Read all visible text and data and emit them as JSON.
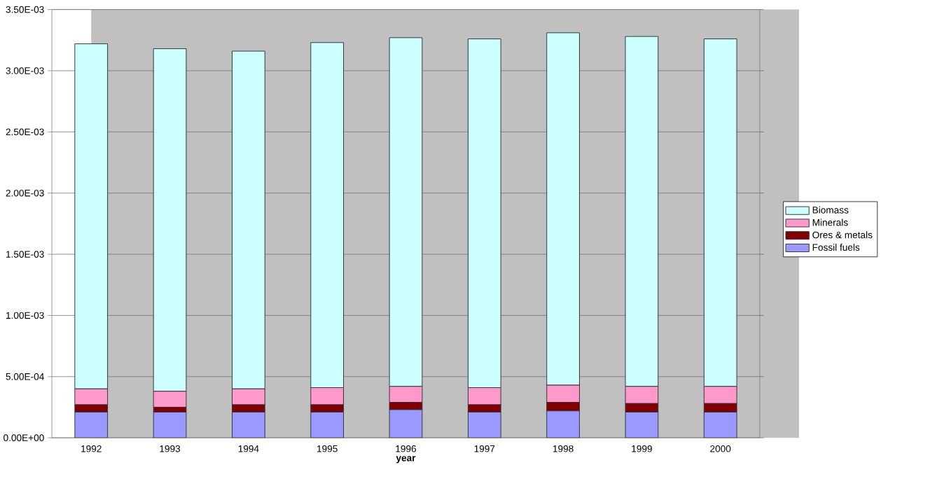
{
  "chart_data": {
    "type": "bar",
    "stacked": true,
    "xlabel": "year",
    "categories": [
      "1992",
      "1993",
      "1994",
      "1995",
      "1996",
      "1997",
      "1998",
      "1999",
      "2000"
    ],
    "series": [
      {
        "name": "Fossil fuels",
        "color": "#9999ff",
        "values": [
          0.00021,
          0.00021,
          0.00021,
          0.00021,
          0.00023,
          0.00021,
          0.00022,
          0.00021,
          0.00021
        ]
      },
      {
        "name": "Ores & metals",
        "color": "#800000",
        "values": [
          6e-05,
          4e-05,
          6e-05,
          6e-05,
          6e-05,
          6e-05,
          7e-05,
          7e-05,
          7e-05
        ]
      },
      {
        "name": "Minerals",
        "color": "#ff99cc",
        "values": [
          0.00013,
          0.00013,
          0.00013,
          0.00014,
          0.00013,
          0.00014,
          0.00014,
          0.00014,
          0.00014
        ]
      },
      {
        "name": "Biomass",
        "color": "#ccffff",
        "values": [
          0.00282,
          0.0028,
          0.00276,
          0.00282,
          0.00285,
          0.00285,
          0.00288,
          0.00286,
          0.00284
        ]
      }
    ],
    "ylim": [
      0,
      0.0035
    ],
    "yticks": [
      {
        "value": 0,
        "label": "0.00E+00"
      },
      {
        "value": 0.0005,
        "label": "5.00E-04"
      },
      {
        "value": 0.001,
        "label": "1.00E-03"
      },
      {
        "value": 0.0015,
        "label": "1.50E-03"
      },
      {
        "value": 0.002,
        "label": "2.00E-03"
      },
      {
        "value": 0.0025,
        "label": "2.50E-03"
      },
      {
        "value": 0.003,
        "label": "3.00E-03"
      },
      {
        "value": 0.0035,
        "label": "3.50E-03"
      }
    ],
    "grid": "y",
    "legend": "right"
  }
}
